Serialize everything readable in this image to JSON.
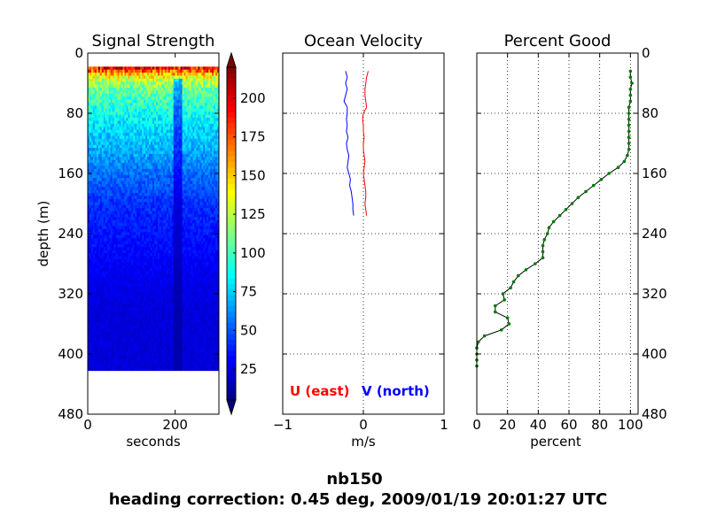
{
  "figure": {
    "suptitle_line1": "nb150",
    "suptitle_line2": "heading correction:  0.45 deg, 2009/01/19 20:01:27 UTC"
  },
  "chart_data": [
    {
      "type": "heatmap",
      "title": "Signal Strength",
      "xlabel": "seconds",
      "ylabel": "depth (m)",
      "xlim": [
        0,
        300
      ],
      "ylim": [
        480,
        0
      ],
      "x_ticks": [
        "0",
        "200"
      ],
      "y_ticks": [
        "0",
        "80",
        "160",
        "240",
        "320",
        "400",
        "480"
      ],
      "data_extent": {
        "x": [
          0,
          300
        ],
        "depth": [
          18,
          420
        ]
      },
      "colormap": "jet",
      "colorbar": {
        "min": 5,
        "max": 220,
        "ticks": [
          "25",
          "50",
          "75",
          "100",
          "125",
          "150",
          "175",
          "200"
        ],
        "extend": "both"
      },
      "profile": {
        "depth": [
          18,
          24,
          30,
          40,
          50,
          60,
          80,
          100,
          130,
          160,
          200,
          240,
          280,
          320,
          360,
          400,
          420
        ],
        "value": [
          205,
          175,
          140,
          120,
          108,
          100,
          88,
          78,
          68,
          55,
          42,
          36,
          30,
          26,
          24,
          24,
          24
        ]
      },
      "low_signal_band_seconds": [
        195,
        215
      ]
    },
    {
      "type": "line",
      "title": "Ocean Velocity",
      "xlabel": "m/s",
      "xlim": [
        -1,
        1
      ],
      "ylim": [
        480,
        0
      ],
      "x_ticks": [
        "−1",
        "0",
        "1"
      ],
      "grid": true,
      "legend_text": [
        {
          "label": "U (east)",
          "color": "#ff0000"
        },
        {
          "label": "V (north)",
          "color": "#0000ff"
        }
      ],
      "series": [
        {
          "name": "U (east)",
          "color": "#ff0000",
          "depth": [
            24,
            32,
            40,
            48,
            56,
            64,
            72,
            80,
            88,
            96,
            104,
            112,
            120,
            128,
            136,
            144,
            152,
            160,
            168,
            176,
            184,
            192,
            200,
            208,
            216
          ],
          "value": [
            0.06,
            0.04,
            0.03,
            0.02,
            0.02,
            0.03,
            0.04,
            0.0,
            -0.01,
            0.0,
            0.0,
            0.01,
            0.0,
            0.0,
            0.01,
            0.02,
            0.01,
            0.0,
            0.01,
            0.02,
            0.03,
            0.03,
            0.02,
            0.03,
            0.04
          ]
        },
        {
          "name": "V (north)",
          "color": "#0000ff",
          "depth": [
            24,
            32,
            40,
            48,
            56,
            64,
            72,
            80,
            88,
            96,
            104,
            112,
            120,
            128,
            136,
            144,
            152,
            160,
            168,
            176,
            184,
            192,
            200,
            208,
            216
          ],
          "value": [
            -0.22,
            -0.2,
            -0.22,
            -0.2,
            -0.22,
            -0.24,
            -0.2,
            -0.2,
            -0.21,
            -0.2,
            -0.21,
            -0.19,
            -0.21,
            -0.2,
            -0.18,
            -0.19,
            -0.2,
            -0.18,
            -0.16,
            -0.17,
            -0.15,
            -0.14,
            -0.13,
            -0.13,
            -0.12
          ]
        }
      ]
    },
    {
      "type": "line",
      "title": "Percent Good",
      "xlabel": "percent",
      "xlim": [
        0,
        105
      ],
      "ylim": [
        480,
        0
      ],
      "x_ticks": [
        "0",
        "20",
        "40",
        "60",
        "80",
        "100"
      ],
      "y_ticks": [
        "0",
        "80",
        "160",
        "240",
        "320",
        "400",
        "480"
      ],
      "grid": true,
      "series": [
        {
          "line_color": "#000000",
          "marker_color": "#007a00",
          "depth": [
            24,
            32,
            40,
            48,
            56,
            64,
            72,
            80,
            88,
            96,
            104,
            112,
            120,
            128,
            136,
            144,
            152,
            160,
            168,
            176,
            184,
            192,
            200,
            208,
            216,
            224,
            232,
            240,
            248,
            256,
            264,
            272,
            280,
            288,
            296,
            304,
            312,
            320,
            328,
            336,
            344,
            352,
            360,
            368,
            376,
            384,
            392,
            400,
            408,
            416
          ],
          "value": [
            100,
            100,
            101,
            100,
            100,
            100,
            99,
            99,
            99,
            99,
            99,
            99,
            99,
            99,
            98,
            96,
            92,
            86,
            81,
            76,
            71,
            66,
            62,
            58,
            54,
            50,
            47,
            46,
            44,
            43,
            43,
            43,
            38,
            32,
            27,
            24,
            22,
            17,
            18,
            12,
            12,
            20,
            21,
            16,
            5,
            1,
            0,
            0,
            0,
            0
          ]
        }
      ]
    }
  ]
}
